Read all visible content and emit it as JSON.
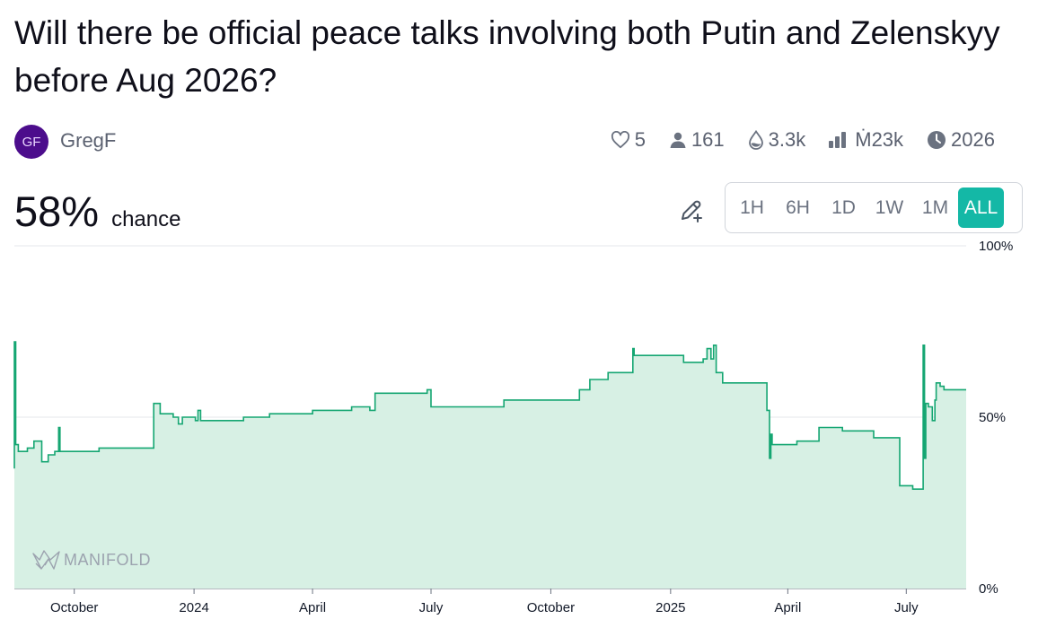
{
  "question": {
    "title": "Will there be official peace talks involving both Putin and Zelenskyy before Aug 2026?"
  },
  "creator": {
    "initials": "GF",
    "name": "GregF",
    "avatar_color": "#4c0d8c"
  },
  "stats": {
    "likes": "5",
    "traders": "161",
    "liquidity": "3.3k",
    "volume": "Ṁ23k",
    "close_year": "2026",
    "icons": [
      "heart-icon",
      "user-icon",
      "droplet-icon",
      "bar-chart-icon",
      "clock-icon"
    ]
  },
  "probability": {
    "value": "58%",
    "label": "chance"
  },
  "time_range": {
    "options": [
      "1H",
      "6H",
      "1D",
      "1W",
      "1M",
      "ALL"
    ],
    "selected": "ALL"
  },
  "colors": {
    "accent": "#14b8a6",
    "line": "#15a672",
    "fill": "#d7f0e4"
  },
  "watermark": "MANIFOLD",
  "chart_data": {
    "type": "area",
    "y_unit": "%",
    "ylim": [
      0,
      100
    ],
    "y_ticks": [
      "100%",
      "50%",
      "0%"
    ],
    "x_ticks": [
      "October",
      "2024",
      "April",
      "July",
      "October",
      "2025",
      "April",
      "July"
    ],
    "xlim": [
      "2023-08-16",
      "2025-08-16"
    ],
    "grid": "horizontal at 50% and 100%",
    "series": [
      {
        "points": [
          [
            "2023-08-16",
            35
          ],
          [
            "2023-08-16",
            72
          ],
          [
            "2023-08-17",
            42
          ],
          [
            "2023-08-19",
            40
          ],
          [
            "2023-08-26",
            41
          ],
          [
            "2023-08-31",
            43
          ],
          [
            "2023-09-06",
            37
          ],
          [
            "2023-09-11",
            39
          ],
          [
            "2023-09-16",
            40
          ],
          [
            "2023-09-19",
            47
          ],
          [
            "2023-09-20",
            40
          ],
          [
            "2023-10-20",
            41
          ],
          [
            "2023-12-01",
            41
          ],
          [
            "2023-12-01",
            54
          ],
          [
            "2023-12-06",
            51
          ],
          [
            "2023-12-16",
            50
          ],
          [
            "2023-12-20",
            48
          ],
          [
            "2023-12-23",
            50
          ],
          [
            "2024-01-02",
            49
          ],
          [
            "2024-01-04",
            52
          ],
          [
            "2024-01-06",
            49
          ],
          [
            "2024-01-28",
            49
          ],
          [
            "2024-02-08",
            50
          ],
          [
            "2024-02-28",
            51
          ],
          [
            "2024-03-20",
            51
          ],
          [
            "2024-03-31",
            51
          ],
          [
            "2024-04-01",
            52
          ],
          [
            "2024-04-27",
            52
          ],
          [
            "2024-05-01",
            53
          ],
          [
            "2024-05-15",
            52
          ],
          [
            "2024-05-19",
            57
          ],
          [
            "2024-06-04",
            57
          ],
          [
            "2024-06-18",
            57
          ],
          [
            "2024-06-28",
            58
          ],
          [
            "2024-07-01",
            53
          ],
          [
            "2024-07-20",
            53
          ],
          [
            "2024-08-03",
            53
          ],
          [
            "2024-08-19",
            53
          ],
          [
            "2024-08-26",
            55
          ],
          [
            "2024-09-08",
            55
          ],
          [
            "2024-10-15",
            55
          ],
          [
            "2024-10-17",
            55
          ],
          [
            "2024-10-23",
            58
          ],
          [
            "2024-10-31",
            61
          ],
          [
            "2024-11-14",
            63
          ],
          [
            "2024-12-02",
            63
          ],
          [
            "2024-12-03",
            70
          ],
          [
            "2024-12-04",
            68
          ],
          [
            "2025-01-11",
            66
          ],
          [
            "2025-01-26",
            67
          ],
          [
            "2025-01-29",
            70
          ],
          [
            "2025-02-01",
            67
          ],
          [
            "2025-02-03",
            71
          ],
          [
            "2025-02-05",
            63
          ],
          [
            "2025-02-10",
            60
          ],
          [
            "2025-03-14",
            60
          ],
          [
            "2025-03-16",
            52
          ],
          [
            "2025-03-18",
            38
          ],
          [
            "2025-03-19",
            45
          ],
          [
            "2025-03-20",
            42
          ],
          [
            "2025-04-08",
            43
          ],
          [
            "2025-04-25",
            47
          ],
          [
            "2025-05-11",
            47
          ],
          [
            "2025-05-13",
            46
          ],
          [
            "2025-05-29",
            46
          ],
          [
            "2025-06-06",
            44
          ],
          [
            "2025-06-25",
            44
          ],
          [
            "2025-06-26",
            30
          ],
          [
            "2025-07-05",
            30
          ],
          [
            "2025-07-06",
            29
          ],
          [
            "2025-07-13",
            29
          ],
          [
            "2025-07-14",
            71
          ],
          [
            "2025-07-15",
            38
          ],
          [
            "2025-07-16",
            54
          ],
          [
            "2025-07-18",
            53
          ],
          [
            "2025-07-21",
            49
          ],
          [
            "2025-07-23",
            55
          ],
          [
            "2025-07-24",
            60
          ],
          [
            "2025-07-27",
            59
          ],
          [
            "2025-07-30",
            58
          ]
        ]
      }
    ]
  }
}
